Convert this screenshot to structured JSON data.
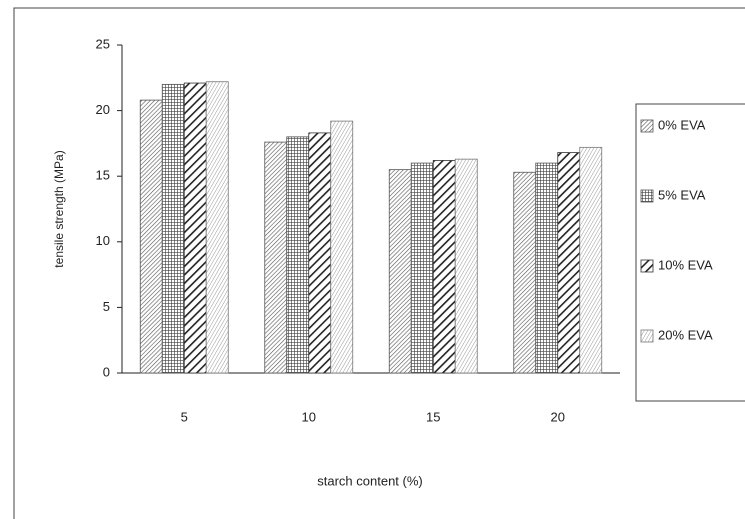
{
  "chart_data": {
    "type": "bar",
    "x_label": "starch content (%)",
    "y_label": "tensile strength (MPa)",
    "categories": [
      "5",
      "10",
      "15",
      "20"
    ],
    "series": [
      {
        "name": "0% EVA",
        "color": "#555555",
        "pattern": "fine-diagonal",
        "values": [
          20.8,
          17.6,
          15.5,
          15.3
        ]
      },
      {
        "name": "5% EVA",
        "color": "#555555",
        "pattern": "grid",
        "values": [
          22.0,
          18.0,
          16.0,
          16.0
        ]
      },
      {
        "name": "10% EVA",
        "color": "#333333",
        "pattern": "bold-diagonal",
        "values": [
          22.1,
          18.3,
          16.2,
          16.8
        ]
      },
      {
        "name": "20% EVA",
        "color": "#777777",
        "pattern": "dots",
        "values": [
          22.2,
          19.2,
          16.3,
          17.2
        ]
      }
    ],
    "ylim": [
      0,
      25
    ],
    "yticks": [
      0,
      5,
      10,
      15,
      20,
      25
    ],
    "grid": false,
    "legend": "right"
  }
}
